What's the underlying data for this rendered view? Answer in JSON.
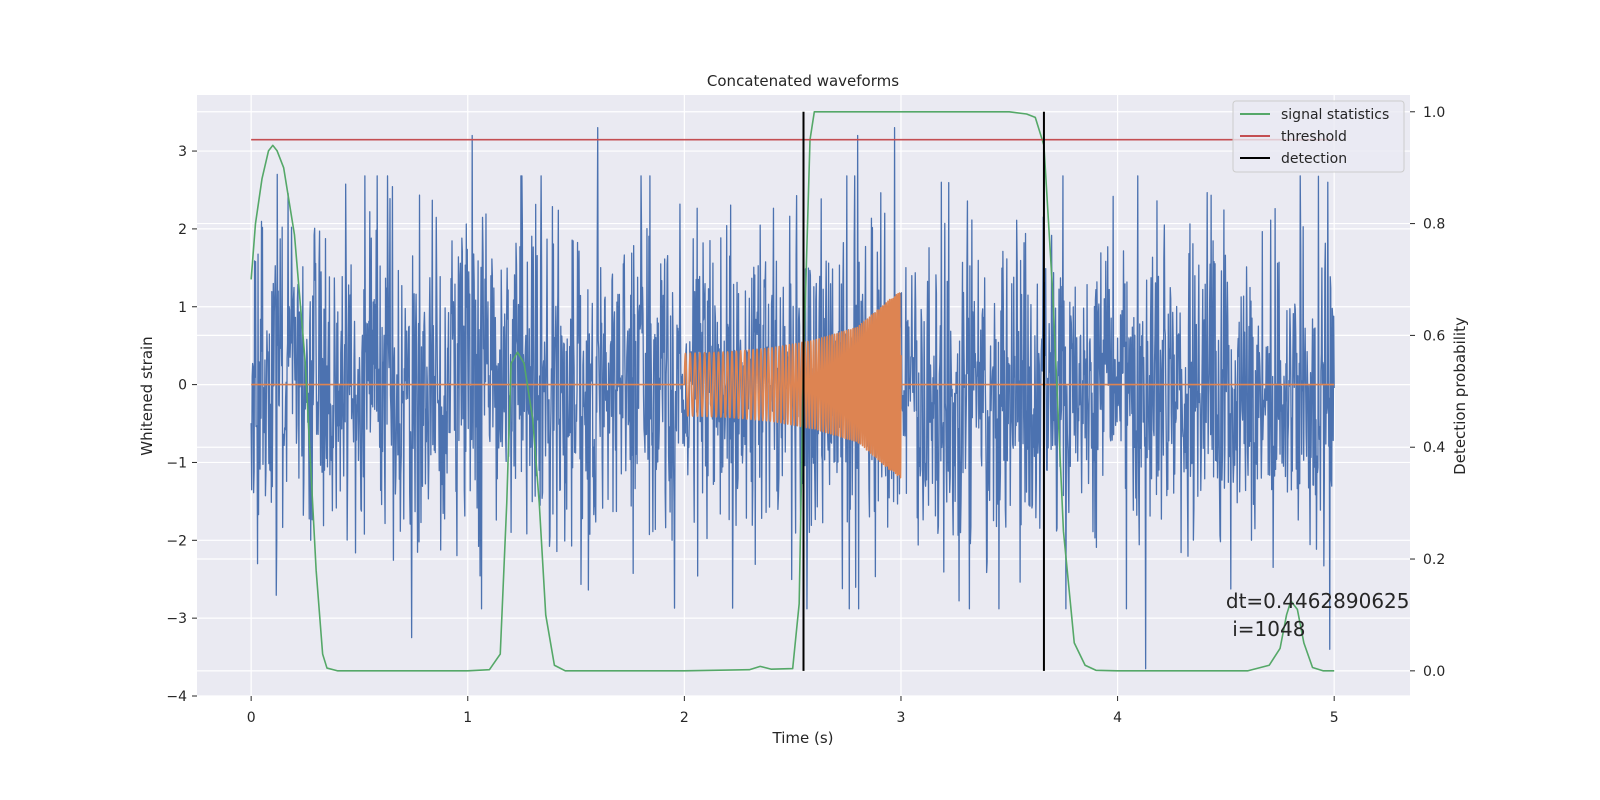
{
  "chart_data": {
    "type": "line",
    "title": "Concatenated waveforms",
    "xlabel": "Time (s)",
    "ylabel_left": "Whitened strain",
    "ylabel_right": "Detection probability",
    "xlim": [
      -0.25,
      5.35
    ],
    "ylim_left": [
      -4.0,
      3.72
    ],
    "ylim_right": [
      -0.045,
      1.03
    ],
    "x_ticks": [
      0,
      1,
      2,
      3,
      4,
      5
    ],
    "x_tick_labels": [
      "0",
      "1",
      "2",
      "3",
      "4",
      "5"
    ],
    "y_left_ticks": [
      -4,
      -3,
      -2,
      -1,
      0,
      1,
      2,
      3
    ],
    "y_left_tick_labels": [
      "−4",
      "−3",
      "−2",
      "−1",
      "0",
      "1",
      "2",
      "3"
    ],
    "y_right_ticks": [
      0.0,
      0.2,
      0.4,
      0.6,
      0.8,
      1.0
    ],
    "y_right_tick_labels": [
      "0.0",
      "0.2",
      "0.4",
      "0.6",
      "0.8",
      "1.0"
    ],
    "grid": true,
    "legend_position": "top-right",
    "legend": [
      {
        "label": "signal statistics",
        "color": "#55a868"
      },
      {
        "label": "threshold",
        "color": "#c44e52"
      },
      {
        "label": "detection",
        "color": "#000000"
      }
    ],
    "series": [
      {
        "label": "whitened strain",
        "axis": "left",
        "color": "#4c72b0",
        "kind": "noise",
        "x_range": [
          0,
          5
        ],
        "typical_amplitude": 1.2,
        "extreme_range": [
          -3.6,
          3.35
        ],
        "peaks": [
          [
            0.12,
            2.7
          ],
          [
            0.74,
            -3.25
          ],
          [
            1.02,
            3.2
          ],
          [
            1.6,
            3.3
          ],
          [
            2.55,
            -3.35
          ],
          [
            2.8,
            3.2
          ],
          [
            2.97,
            3.3
          ],
          [
            4.13,
            -3.65
          ],
          [
            4.98,
            -3.4
          ]
        ]
      },
      {
        "label": "injected waveform",
        "axis": "left",
        "color": "#dd8452",
        "kind": "chirp",
        "x": [
          0,
          2,
          2.2,
          2.4,
          2.6,
          2.8,
          2.95,
          3,
          5
        ],
        "envelope": [
          0,
          0.4,
          0.42,
          0.47,
          0.57,
          0.74,
          1.1,
          1.2,
          0
        ]
      },
      {
        "label": "signal statistics",
        "axis": "right",
        "color": "#55a868",
        "x": [
          0.0,
          0.02,
          0.05,
          0.08,
          0.1,
          0.12,
          0.15,
          0.2,
          0.25,
          0.3,
          0.33,
          0.35,
          0.4,
          1.0,
          1.1,
          1.15,
          1.18,
          1.2,
          1.23,
          1.26,
          1.3,
          1.33,
          1.36,
          1.4,
          1.45,
          2.0,
          2.3,
          2.35,
          2.4,
          2.5,
          2.53,
          2.55,
          2.58,
          2.6,
          2.7,
          3.5,
          3.58,
          3.62,
          3.66,
          3.7,
          3.75,
          3.8,
          3.85,
          3.9,
          4.0,
          4.6,
          4.7,
          4.75,
          4.78,
          4.8,
          4.83,
          4.86,
          4.9,
          4.95,
          5.0
        ],
        "y": [
          0.7,
          0.8,
          0.88,
          0.93,
          0.94,
          0.93,
          0.9,
          0.78,
          0.55,
          0.18,
          0.03,
          0.005,
          0.0,
          0.0,
          0.002,
          0.03,
          0.3,
          0.55,
          0.57,
          0.55,
          0.45,
          0.3,
          0.1,
          0.01,
          0.0,
          0.0,
          0.002,
          0.008,
          0.003,
          0.004,
          0.12,
          0.55,
          0.95,
          1.0,
          1.0,
          1.0,
          0.996,
          0.99,
          0.94,
          0.68,
          0.25,
          0.05,
          0.01,
          0.001,
          0.0,
          0.0,
          0.01,
          0.04,
          0.1,
          0.125,
          0.11,
          0.05,
          0.006,
          0.0,
          0.0
        ]
      },
      {
        "label": "threshold",
        "axis": "right",
        "color": "#c44e52",
        "x": [
          0,
          5
        ],
        "y": [
          0.95,
          0.95
        ]
      }
    ],
    "detections": [
      2.55,
      3.66
    ],
    "detection_color": "#000000",
    "annotation": {
      "lines": [
        "dt=0.4462890625",
        " i=1048"
      ],
      "x": 4.5,
      "y_right": 0.112
    }
  }
}
